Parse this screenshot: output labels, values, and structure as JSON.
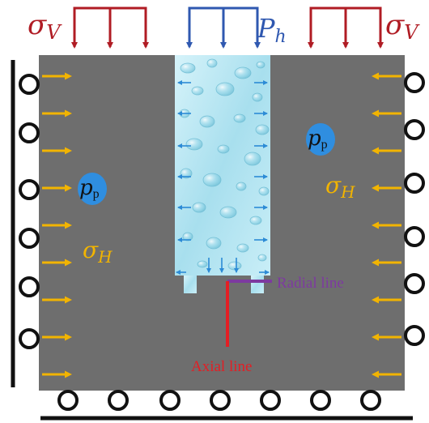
{
  "colors": {
    "rock": "#6e6e6e",
    "water_light": "#bfe9f4",
    "water_mid": "#7cc8dd",
    "sigma_v": "#b01c24",
    "p_h": "#2f58b0",
    "sigma_h": "#f2b400",
    "pore": "#2f8ee0",
    "radial_line": "#7d3aa0",
    "axial_line": "#e31e24",
    "support": "#111111",
    "inner_arrow": "#2c8bd6"
  },
  "labels": {
    "sigma_v_left": {
      "base": "σ",
      "sub": "V"
    },
    "sigma_v_right": {
      "base": "σ",
      "sub": "V"
    },
    "p_h": {
      "base": "P",
      "sub": "h"
    },
    "sigma_h_left": {
      "base": "σ",
      "sub": "H"
    },
    "sigma_h_right": {
      "base": "σ",
      "sub": "H"
    },
    "pp_left": {
      "base": "p",
      "sub": "p"
    },
    "pp_right": {
      "base": "p",
      "sub": "p"
    },
    "radial_line": "Radial line",
    "axial_line": "Axial line"
  }
}
